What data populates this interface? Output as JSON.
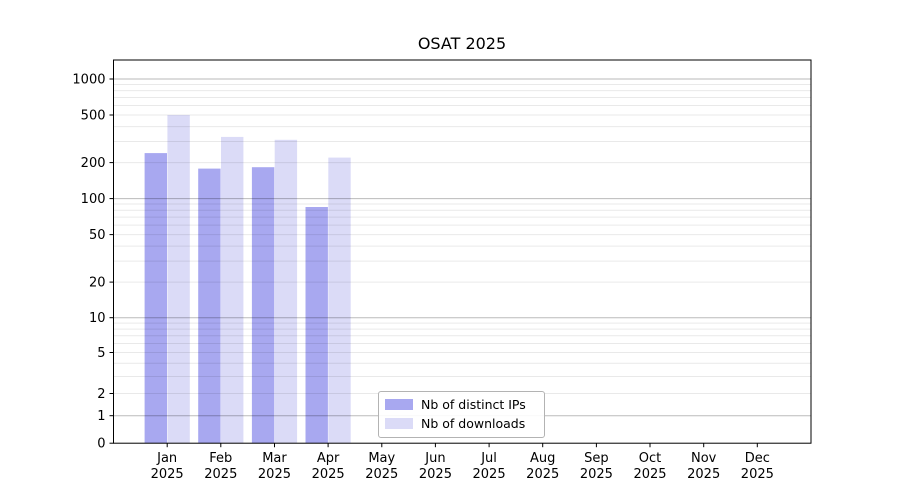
{
  "chart_data": {
    "type": "bar",
    "title": "OSAT 2025",
    "year_label": "2025",
    "categories": [
      "Jan",
      "Feb",
      "Mar",
      "Apr",
      "May",
      "Jun",
      "Jul",
      "Aug",
      "Sep",
      "Oct",
      "Nov",
      "Dec"
    ],
    "series": [
      {
        "name": "Nb of distinct IPs",
        "color": "#a8a8f0",
        "values": [
          240,
          178,
          183,
          85,
          null,
          null,
          null,
          null,
          null,
          null,
          null,
          null
        ]
      },
      {
        "name": "Nb of downloads",
        "color": "#dbdbf7",
        "values": [
          500,
          328,
          310,
          220,
          null,
          null,
          null,
          null,
          null,
          null,
          null,
          null
        ]
      }
    ],
    "y_axis": {
      "scale": "asinh-log",
      "tick_labels": [
        0,
        1,
        2,
        5,
        10,
        20,
        50,
        100,
        200,
        500,
        1000
      ],
      "major_gridlines": [
        1,
        10,
        100,
        1000
      ],
      "ylim": [
        0,
        1300
      ],
      "grid": true
    },
    "legend": {
      "position": "lower center, inside plot",
      "entries": [
        "Nb of distinct IPs",
        "Nb of downloads"
      ]
    },
    "colors": {
      "axis": "#000000",
      "grid_major": "#bdbdbd",
      "grid_minor": "#e9e9e9",
      "background": "#ffffff",
      "text": "#000000"
    }
  }
}
